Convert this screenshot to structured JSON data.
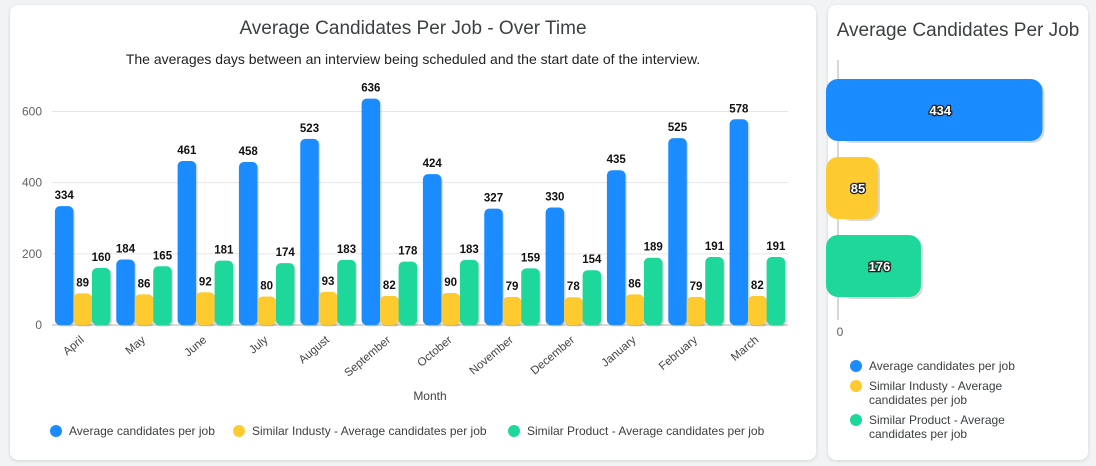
{
  "chart_data": [
    {
      "type": "bar",
      "title": "Average Candidates Per Job - Over Time",
      "subtitle": "The averages days between an interview being scheduled and the start date of the interview.",
      "xlabel": "Month",
      "ylabel": "",
      "ylim": [
        0,
        680
      ],
      "yticks": [
        0,
        200,
        400,
        600
      ],
      "categories": [
        "April",
        "May",
        "June",
        "July",
        "August",
        "September",
        "October",
        "November",
        "December",
        "January",
        "February",
        "March"
      ],
      "series": [
        {
          "name": "Average candidates per job",
          "color": "#1a8cff",
          "values": [
            334,
            184,
            461,
            458,
            523,
            636,
            424,
            327,
            330,
            435,
            525,
            578
          ]
        },
        {
          "name": "Similar Industy - Average candidates per job",
          "color": "#fdcb2f",
          "values": [
            89,
            86,
            92,
            80,
            93,
            82,
            90,
            79,
            78,
            86,
            79,
            82
          ]
        },
        {
          "name": "Similar Product - Average candidates per job",
          "color": "#1ed79b",
          "values": [
            160,
            165,
            181,
            174,
            183,
            178,
            183,
            159,
            154,
            189,
            191,
            191
          ]
        }
      ],
      "grid": true,
      "legend": "bottom"
    },
    {
      "type": "bar",
      "orientation": "horizontal",
      "title": "Average Candidates Per Job",
      "xlim": [
        0,
        520
      ],
      "xticks": [
        0
      ],
      "series": [
        {
          "name": "Average candidates per job",
          "legend_label": [
            "Average candidates per job"
          ],
          "color": "#1a8cff",
          "value": 434
        },
        {
          "name": "Similar Industy - Average candidates per job",
          "legend_label": [
            "Similar Industy - Average",
            "candidates per job"
          ],
          "color": "#fdcb2f",
          "value": 85
        },
        {
          "name": "Similar Product - Average candidates per job",
          "legend_label": [
            "Similar Product - Average",
            "candidates per job"
          ],
          "color": "#1ed79b",
          "value": 176
        }
      ],
      "legend": "bottom"
    }
  ]
}
